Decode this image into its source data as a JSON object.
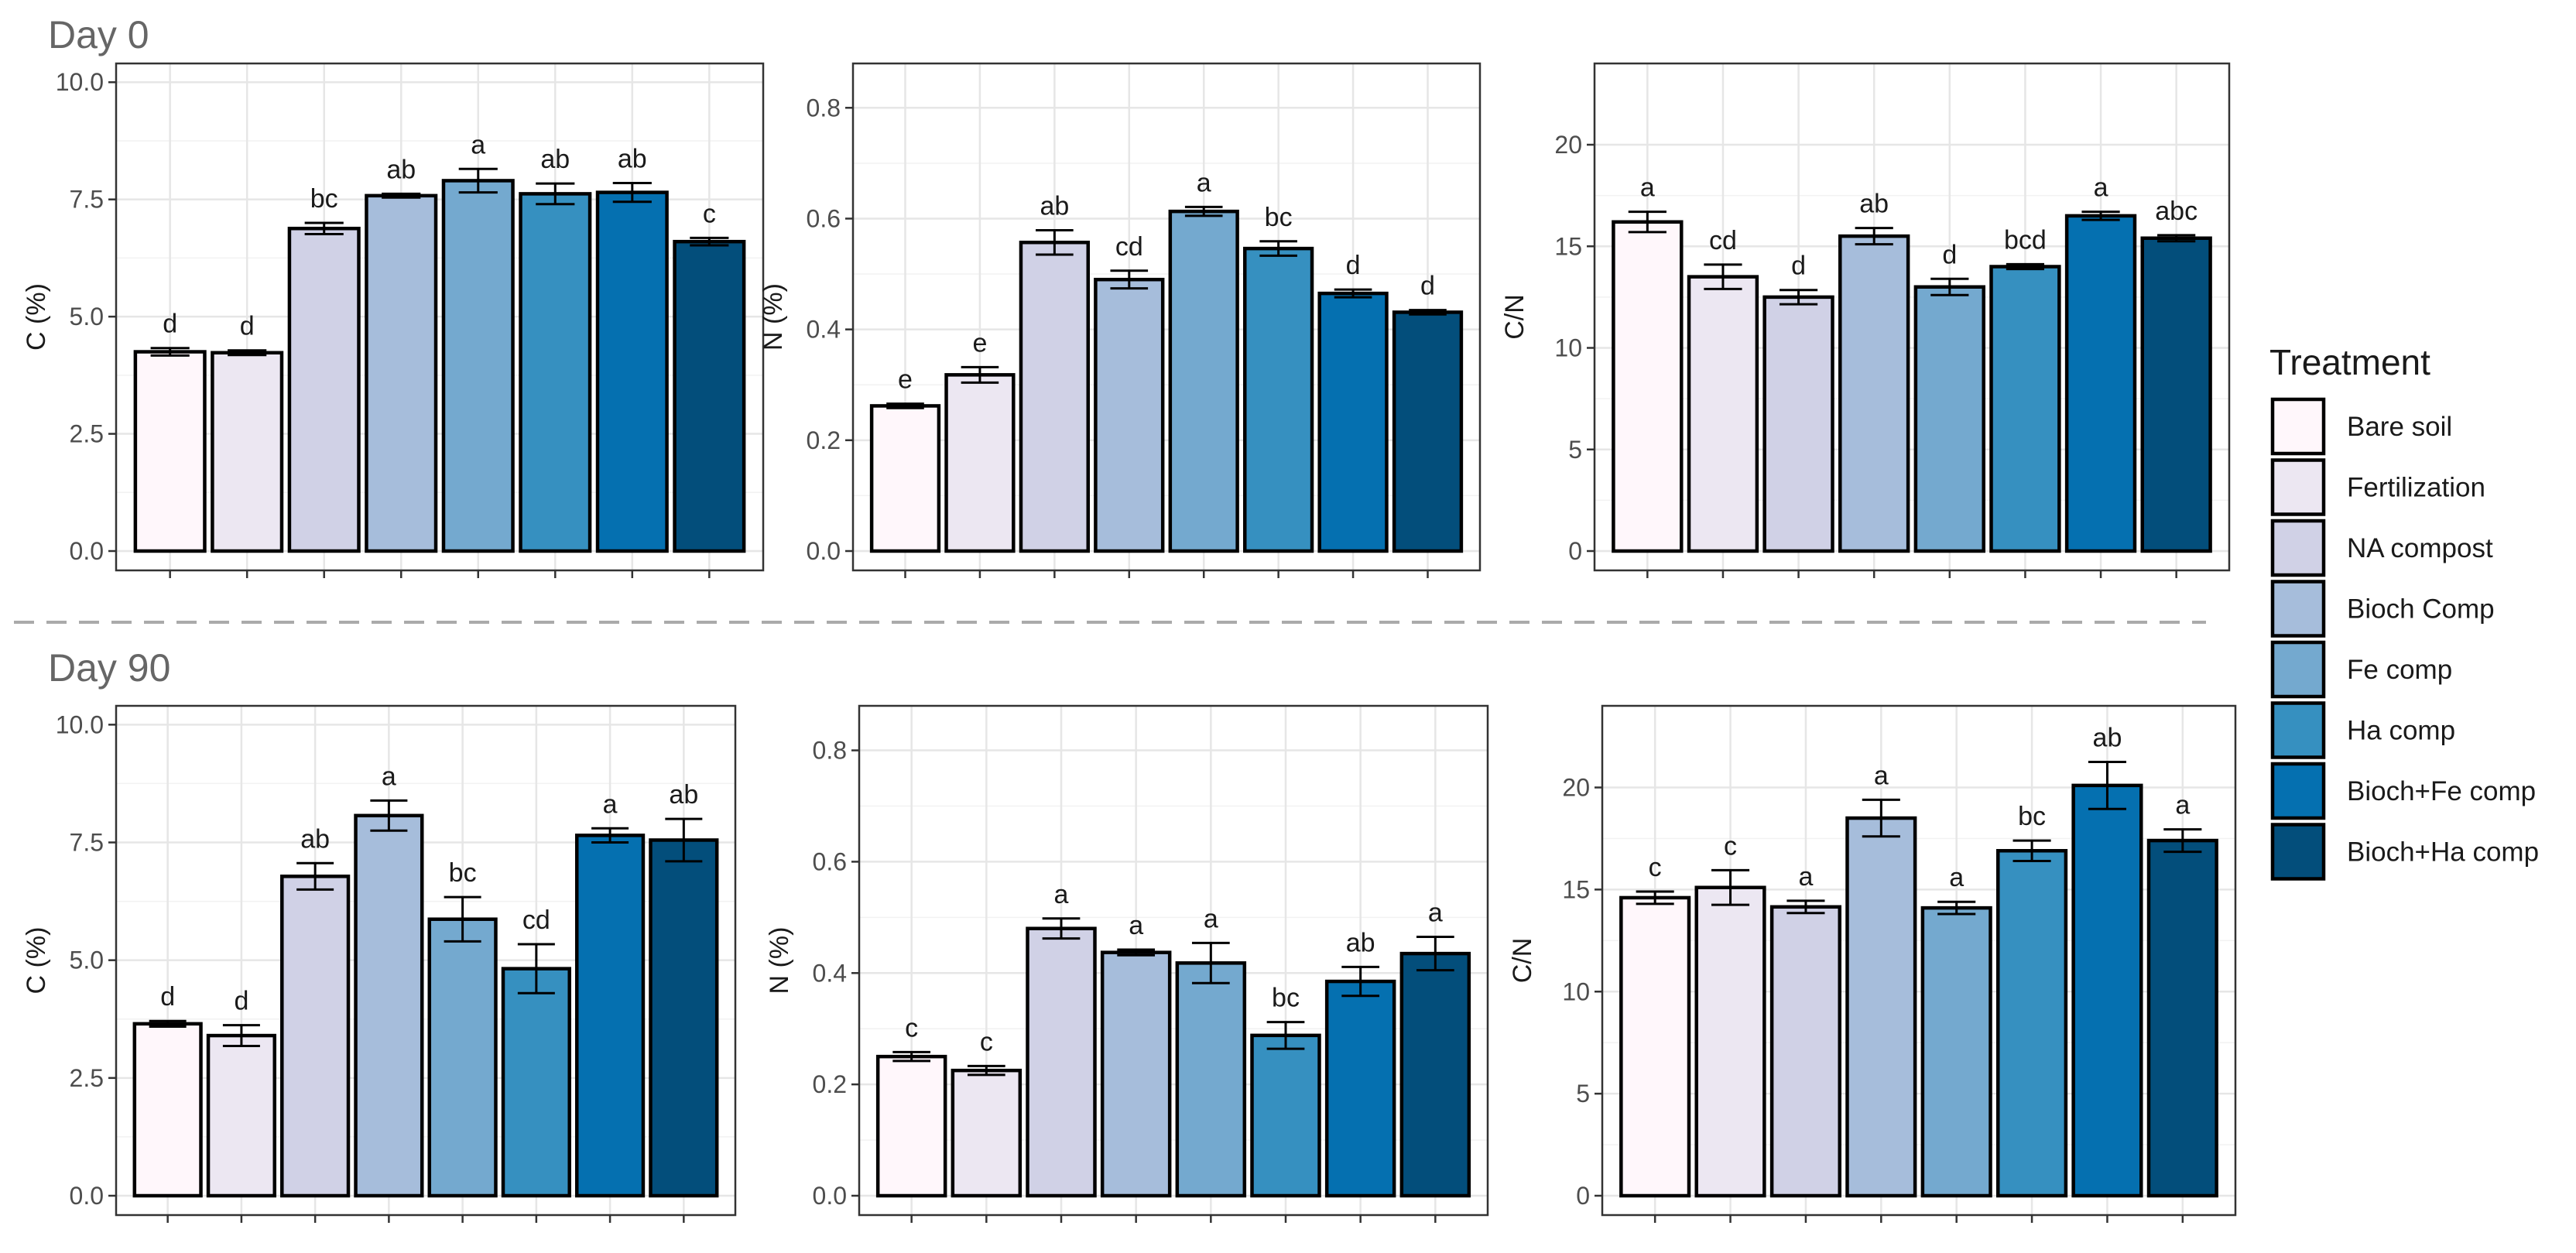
{
  "sections": [
    {
      "title": "Day 0"
    },
    {
      "title": "Day 90"
    }
  ],
  "legend": {
    "title": "Treatment",
    "items": [
      {
        "label": "Bare soil",
        "color": "#fff7fb"
      },
      {
        "label": "Fertilization",
        "color": "#ece7f2"
      },
      {
        "label": "NA compost",
        "color": "#d0d1e6"
      },
      {
        "label": "Bioch Comp",
        "color": "#a6bddb"
      },
      {
        "label": "Fe comp",
        "color": "#74a9cf"
      },
      {
        "label": "Ha comp",
        "color": "#3690c0"
      },
      {
        "label": "Bioch+Fe comp",
        "color": "#0570b0"
      },
      {
        "label": "Bioch+Ha comp",
        "color": "#034e7b"
      }
    ]
  },
  "chart_data": [
    {
      "type": "bar",
      "section": "Day 0",
      "ylabel": "C (%)",
      "ylim": [
        0,
        10.4
      ],
      "yticks": [
        "0.0",
        "2.5",
        "5.0",
        "7.5",
        "10.0"
      ],
      "tick_values": [
        0,
        2.5,
        5,
        7.5,
        10
      ],
      "categories": [
        "Bare soil",
        "Fertilization",
        "NA compost",
        "Bioch Comp",
        "Fe comp",
        "Ha comp",
        "Bioch+Fe comp",
        "Bioch+Ha comp"
      ],
      "values": [
        4.25,
        4.23,
        6.88,
        7.58,
        7.9,
        7.62,
        7.65,
        6.6
      ],
      "errors": [
        0.08,
        0.05,
        0.12,
        0.04,
        0.25,
        0.22,
        0.2,
        0.08
      ],
      "letters": [
        "d",
        "d",
        "bc",
        "ab",
        "a",
        "ab",
        "ab",
        "c"
      ]
    },
    {
      "type": "bar",
      "section": "Day 0",
      "ylabel": "N (%)",
      "ylim": [
        0,
        0.88
      ],
      "yticks": [
        "0.0",
        "0.2",
        "0.4",
        "0.6",
        "0.8"
      ],
      "tick_values": [
        0,
        0.2,
        0.4,
        0.6,
        0.8
      ],
      "categories": [
        "Bare soil",
        "Fertilization",
        "NA compost",
        "Bioch Comp",
        "Fe comp",
        "Ha comp",
        "Bioch+Fe comp",
        "Bioch+Ha comp"
      ],
      "values": [
        0.262,
        0.318,
        0.557,
        0.49,
        0.613,
        0.546,
        0.465,
        0.431
      ],
      "errors": [
        0.004,
        0.014,
        0.022,
        0.016,
        0.008,
        0.013,
        0.007,
        0.004
      ],
      "letters": [
        "e",
        "e",
        "ab",
        "cd",
        "a",
        "bc",
        "d",
        "d"
      ]
    },
    {
      "type": "bar",
      "section": "Day 0",
      "ylabel": "C/N",
      "ylim": [
        0,
        24
      ],
      "yticks": [
        "0",
        "5",
        "10",
        "15",
        "20"
      ],
      "tick_values": [
        0,
        5,
        10,
        15,
        20
      ],
      "categories": [
        "Bare soil",
        "Fertilization",
        "NA compost",
        "Bioch Comp",
        "Fe comp",
        "Ha comp",
        "Bioch+Fe comp",
        "Bioch+Ha comp"
      ],
      "values": [
        16.2,
        13.5,
        12.5,
        15.5,
        13.0,
        14.0,
        16.5,
        15.4
      ],
      "errors": [
        0.5,
        0.6,
        0.35,
        0.4,
        0.4,
        0.12,
        0.2,
        0.15
      ],
      "letters": [
        "a",
        "cd",
        "d",
        "ab",
        "d",
        "bcd",
        "a",
        "abc"
      ]
    },
    {
      "type": "bar",
      "section": "Day 90",
      "ylabel": "C (%)",
      "ylim": [
        0,
        10.4
      ],
      "yticks": [
        "0.0",
        "2.5",
        "5.0",
        "7.5",
        "10.0"
      ],
      "tick_values": [
        0,
        2.5,
        5,
        7.5,
        10
      ],
      "categories": [
        "Bare soil",
        "Fertilization",
        "NA compost",
        "Bioch Comp",
        "Fe comp",
        "Ha comp",
        "Bioch+Fe comp",
        "Bioch+Ha comp"
      ],
      "values": [
        3.65,
        3.4,
        6.78,
        8.07,
        5.87,
        4.82,
        7.65,
        7.55
      ],
      "errors": [
        0.06,
        0.22,
        0.28,
        0.32,
        0.47,
        0.52,
        0.15,
        0.45
      ],
      "letters": [
        "d",
        "d",
        "ab",
        "a",
        "bc",
        "cd",
        "a",
        "ab"
      ]
    },
    {
      "type": "bar",
      "section": "Day 90",
      "ylabel": "N (%)",
      "ylim": [
        0,
        0.88
      ],
      "yticks": [
        "0.0",
        "0.2",
        "0.4",
        "0.6",
        "0.8"
      ],
      "tick_values": [
        0,
        0.2,
        0.4,
        0.6,
        0.8
      ],
      "categories": [
        "Bare soil",
        "Fertilization",
        "NA compost",
        "Bioch Comp",
        "Fe comp",
        "Ha comp",
        "Bioch+Fe comp",
        "Bioch+Ha comp"
      ],
      "values": [
        0.25,
        0.225,
        0.48,
        0.437,
        0.418,
        0.288,
        0.385,
        0.435
      ],
      "errors": [
        0.008,
        0.008,
        0.018,
        0.005,
        0.036,
        0.024,
        0.026,
        0.03
      ],
      "letters": [
        "c",
        "c",
        "a",
        "a",
        "a",
        "bc",
        "ab",
        "a"
      ]
    },
    {
      "type": "bar",
      "section": "Day 90",
      "ylabel": "C/N",
      "ylim": [
        0,
        24
      ],
      "yticks": [
        "0",
        "5",
        "10",
        "15",
        "20"
      ],
      "tick_values": [
        0,
        5,
        10,
        15,
        20
      ],
      "categories": [
        "Bare soil",
        "Fertilization",
        "NA compost",
        "Bioch Comp",
        "Fe comp",
        "Ha comp",
        "Bioch+Fe comp",
        "Bioch+Ha comp"
      ],
      "values": [
        14.6,
        15.1,
        14.15,
        18.5,
        14.1,
        16.9,
        20.1,
        17.4
      ],
      "errors": [
        0.3,
        0.85,
        0.3,
        0.9,
        0.3,
        0.5,
        1.15,
        0.55
      ],
      "letters": [
        "c",
        "c",
        "a",
        "a",
        "a",
        "bc",
        "ab",
        "a"
      ]
    }
  ]
}
